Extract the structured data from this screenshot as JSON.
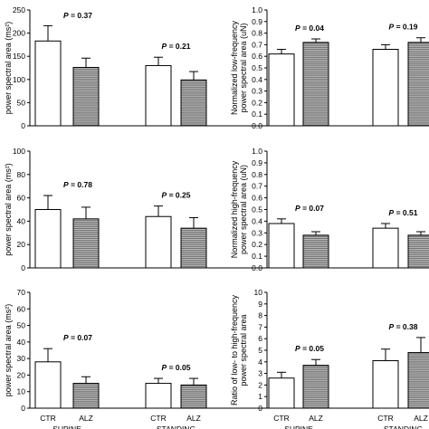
{
  "figure": {
    "group_labels": [
      "SUPINE",
      "STANDING"
    ],
    "category_labels": [
      "CTR",
      "ALZ"
    ],
    "bar_fill": "#ffffff",
    "alz_pattern": {
      "background": "#6e6e6e",
      "line": "#cfcfcf"
    }
  },
  "chart_data": [
    {
      "type": "bar",
      "panel": "top-left",
      "ylabel": "power spectral area (ms²)",
      "ylim": [
        0,
        250
      ],
      "yticks": [
        "0",
        "50",
        "100",
        "150",
        "200",
        "250"
      ],
      "groups": [
        {
          "ctr": 183,
          "ctr_err": 33,
          "alz": 126,
          "alz_err": 20,
          "p": "P = 0.37"
        },
        {
          "ctr": 130,
          "ctr_err": 18,
          "alz": 99,
          "alz_err": 18,
          "p": "P = 0.21"
        }
      ]
    },
    {
      "type": "bar",
      "panel": "top-right",
      "ylabel": [
        "Normalized low-frequency",
        "power spectral area (uN)"
      ],
      "ylim": [
        0,
        1.0
      ],
      "yticks": [
        "0.0",
        "0.1",
        "0.2",
        "0.3",
        "0.4",
        "0.5",
        "0.6",
        "0.7",
        "0.8",
        "0.9",
        "1.0"
      ],
      "groups": [
        {
          "ctr": 0.62,
          "ctr_err": 0.04,
          "alz": 0.72,
          "alz_err": 0.03,
          "p": "P = 0.04"
        },
        {
          "ctr": 0.66,
          "ctr_err": 0.04,
          "alz": 0.72,
          "alz_err": 0.04,
          "p": "P = 0.19"
        }
      ]
    },
    {
      "type": "bar",
      "panel": "middle-left",
      "ylabel": "power spectral area (ms²)",
      "ylim": [
        0,
        100
      ],
      "yticks": [
        "0",
        "20",
        "40",
        "60",
        "80",
        "100"
      ],
      "groups": [
        {
          "ctr": 50,
          "ctr_err": 12,
          "alz": 42,
          "alz_err": 10,
          "p": "P = 0.78"
        },
        {
          "ctr": 44,
          "ctr_err": 9,
          "alz": 34,
          "alz_err": 9,
          "p": "P = 0.25"
        }
      ]
    },
    {
      "type": "bar",
      "panel": "middle-right",
      "ylabel": [
        "Normalized high-frequency",
        "power spectral area (uN)"
      ],
      "ylim": [
        0,
        1.0
      ],
      "yticks": [
        "0.0",
        "0.1",
        "0.2",
        "0.3",
        "0.4",
        "0.5",
        "0.6",
        "0.7",
        "0.8",
        "0.9",
        "1.0"
      ],
      "groups": [
        {
          "ctr": 0.38,
          "ctr_err": 0.04,
          "alz": 0.28,
          "alz_err": 0.03,
          "p": "P = 0.07"
        },
        {
          "ctr": 0.34,
          "ctr_err": 0.04,
          "alz": 0.28,
          "alz_err": 0.03,
          "p": "P = 0.51"
        }
      ]
    },
    {
      "type": "bar",
      "panel": "bottom-left",
      "ylabel": "power spectral area (ms²)",
      "ylim": [
        0,
        70
      ],
      "yticks": [
        "0",
        "10",
        "20",
        "30",
        "40",
        "50",
        "60",
        "70"
      ],
      "groups": [
        {
          "ctr": 28,
          "ctr_err": 8,
          "alz": 15,
          "alz_err": 4,
          "p": "P = 0.07"
        },
        {
          "ctr": 15,
          "ctr_err": 3,
          "alz": 14,
          "alz_err": 4,
          "p": "P = 0.05"
        }
      ]
    },
    {
      "type": "bar",
      "panel": "bottom-right",
      "ylabel": [
        "Ratio of low- to high-frequency",
        "power spectral area"
      ],
      "ylim": [
        0,
        10
      ],
      "yticks": [
        "0",
        "1",
        "2",
        "3",
        "4",
        "5",
        "6",
        "7",
        "8",
        "9",
        "10"
      ],
      "groups": [
        {
          "ctr": 2.6,
          "ctr_err": 0.5,
          "alz": 3.7,
          "alz_err": 0.5,
          "p": "P = 0.05"
        },
        {
          "ctr": 4.1,
          "ctr_err": 1.0,
          "alz": 4.8,
          "alz_err": 1.3,
          "p": "P = 0.38"
        }
      ]
    }
  ]
}
